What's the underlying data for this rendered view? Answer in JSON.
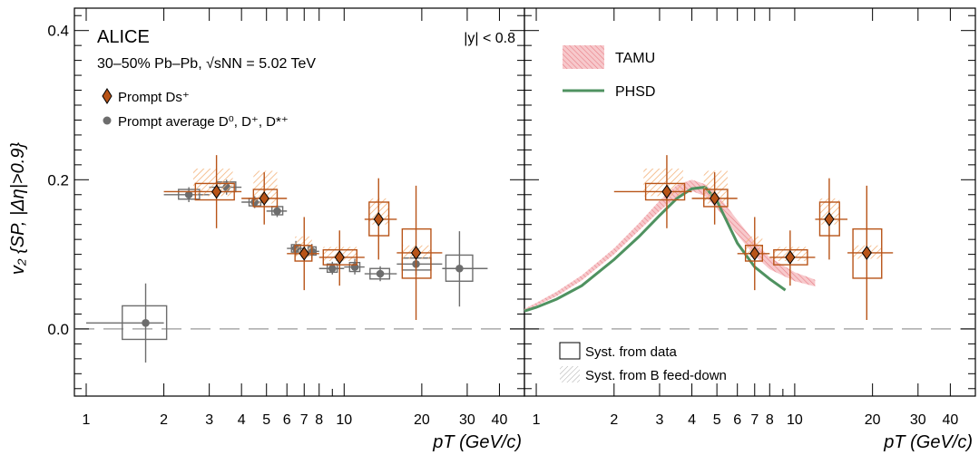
{
  "chart_data": {
    "type": "scatter",
    "ylabel": "v₂ {SP, |Δη|>0.9}",
    "xlabel": "pT (GeV/c)",
    "xscale": "log",
    "xlim": [
      0.9,
      50
    ],
    "ylim": [
      -0.09,
      0.43
    ],
    "yticks": [
      "0.0",
      "0.2",
      "0.4"
    ],
    "xticks": [
      "1",
      "2",
      "3",
      "4",
      "5",
      "6",
      "7",
      "8",
      "10",
      "20",
      "30",
      "40"
    ],
    "grid": false,
    "panels": [
      {
        "id": "left",
        "texts": {
          "experiment": "ALICE",
          "system": "30–50% Pb–Pb, √sNN = 5.02 TeV",
          "rapidity": "|y| < 0.8"
        },
        "legend": [
          {
            "label": "Prompt Ds⁺",
            "marker": "diamond",
            "color": "#b85418"
          },
          {
            "label": "Prompt average D⁰, D⁺, D*⁺",
            "marker": "circle",
            "color": "#6d6d6d"
          }
        ],
        "series": [
          {
            "name": "Prompt Ds⁺",
            "color": "#b85418",
            "points": [
              {
                "x": 3.2,
                "y": 0.184,
                "xlo": 2.0,
                "xhi": 4.0,
                "ylo": 0.135,
                "yhi": 0.233,
                "sys": [
                  2.65,
                  3.75,
                  0.173,
                  0.195
                ],
                "fd": [
                  2.6,
                  3.7,
                  0.178,
                  0.215
                ]
              },
              {
                "x": 4.9,
                "y": 0.175,
                "xlo": 4.0,
                "xhi": 6.0,
                "ylo": 0.14,
                "yhi": 0.21,
                "sys": [
                  4.45,
                  5.5,
                  0.164,
                  0.187
                ],
                "fd": [
                  4.45,
                  5.5,
                  0.168,
                  0.212
                ]
              },
              {
                "x": 7.0,
                "y": 0.101,
                "xlo": 6.0,
                "xhi": 8.0,
                "ylo": 0.052,
                "yhi": 0.15,
                "sys": [
                  6.45,
                  7.5,
                  0.091,
                  0.112
                ],
                "fd": [
                  6.45,
                  7.5,
                  0.096,
                  0.124
                ]
              },
              {
                "x": 9.6,
                "y": 0.096,
                "xlo": 8.0,
                "xhi": 12.0,
                "ylo": 0.058,
                "yhi": 0.132,
                "sys": [
                  8.3,
                  11.2,
                  0.086,
                  0.106
                ],
                "fd": [
                  8.3,
                  11.2,
                  0.091,
                  0.11
                ]
              },
              {
                "x": 13.6,
                "y": 0.147,
                "xlo": 12.0,
                "xhi": 16.0,
                "ylo": 0.093,
                "yhi": 0.202,
                "sys": [
                  12.5,
                  14.9,
                  0.125,
                  0.17
                ],
                "fd": [
                  12.5,
                  14.9,
                  0.14,
                  0.175
                ]
              },
              {
                "x": 19.0,
                "y": 0.102,
                "xlo": 16.0,
                "xhi": 24.0,
                "ylo": 0.012,
                "yhi": 0.192,
                "sys": [
                  16.8,
                  21.7,
                  0.068,
                  0.134
                ],
                "fd": [
                  16.8,
                  21.7,
                  0.094,
                  0.112
                ]
              }
            ]
          },
          {
            "name": "Prompt average D⁰, D⁺, D*⁺",
            "color": "#6d6d6d",
            "points": [
              {
                "x": 1.7,
                "y": 0.008,
                "xlo": 1.0,
                "xhi": 2.0,
                "ylo": -0.045,
                "yhi": 0.061,
                "sys": [
                  1.38,
                  2.05,
                  -0.014,
                  0.031
                ]
              },
              {
                "x": 2.5,
                "y": 0.18,
                "xlo": 2.0,
                "xhi": 3.0,
                "ylo": 0.17,
                "yhi": 0.19,
                "sys": [
                  2.28,
                  2.75,
                  0.174,
                  0.187
                ]
              },
              {
                "x": 3.5,
                "y": 0.19,
                "xlo": 3.0,
                "xhi": 4.0,
                "ylo": 0.18,
                "yhi": 0.2,
                "sys": [
                  3.22,
                  3.8,
                  0.184,
                  0.197
                ]
              },
              {
                "x": 4.5,
                "y": 0.17,
                "xlo": 4.0,
                "xhi": 5.0,
                "ylo": 0.162,
                "yhi": 0.178,
                "sys": [
                  4.28,
                  4.75,
                  0.165,
                  0.175
                ]
              },
              {
                "x": 5.5,
                "y": 0.158,
                "xlo": 5.0,
                "xhi": 6.0,
                "ylo": 0.15,
                "yhi": 0.166,
                "sys": [
                  5.25,
                  5.78,
                  0.153,
                  0.164
                ]
              },
              {
                "x": 6.5,
                "y": 0.108,
                "xlo": 6.0,
                "xhi": 7.0,
                "ylo": 0.099,
                "yhi": 0.118,
                "sys": [
                  6.25,
                  6.78,
                  0.103,
                  0.113
                ]
              },
              {
                "x": 7.5,
                "y": 0.104,
                "xlo": 7.0,
                "xhi": 8.0,
                "ylo": 0.095,
                "yhi": 0.114,
                "sys": [
                  7.25,
                  7.78,
                  0.099,
                  0.11
                ]
              },
              {
                "x": 9.0,
                "y": 0.081,
                "xlo": 8.0,
                "xhi": 10.0,
                "ylo": 0.073,
                "yhi": 0.09,
                "sys": [
                  8.6,
                  9.4,
                  0.076,
                  0.087
                ]
              },
              {
                "x": 11.0,
                "y": 0.083,
                "xlo": 10.0,
                "xhi": 12.0,
                "ylo": 0.073,
                "yhi": 0.094,
                "sys": [
                  10.5,
                  11.5,
                  0.077,
                  0.089
                ]
              },
              {
                "x": 13.8,
                "y": 0.074,
                "xlo": 12.0,
                "xhi": 16.0,
                "ylo": 0.064,
                "yhi": 0.084,
                "sys": [
                  12.6,
                  15.0,
                  0.067,
                  0.081
                ]
              },
              {
                "x": 19.0,
                "y": 0.087,
                "xlo": 16.0,
                "xhi": 24.0,
                "ylo": 0.072,
                "yhi": 0.102,
                "sys": [
                  16.8,
                  21.7,
                  0.079,
                  0.095
                ]
              },
              {
                "x": 28.0,
                "y": 0.081,
                "xlo": 24.0,
                "xhi": 36.0,
                "ylo": 0.03,
                "yhi": 0.131,
                "sys": [
                  24.8,
                  31.5,
                  0.064,
                  0.099
                ]
              }
            ]
          }
        ]
      },
      {
        "id": "right",
        "legend": [
          {
            "label": "TAMU",
            "kind": "band",
            "color": "#e87e86"
          },
          {
            "label": "PHSD",
            "kind": "line",
            "color": "#4f9260"
          }
        ],
        "syst_legend": [
          {
            "label": "Syst. from data",
            "kind": "open-box"
          },
          {
            "label": "Syst. from B feed-down",
            "kind": "hatched-box"
          }
        ],
        "series": [
          {
            "name": "Prompt Ds⁺",
            "color": "#b85418",
            "points": [
              {
                "x": 3.2,
                "y": 0.184,
                "xlo": 2.0,
                "xhi": 4.0,
                "ylo": 0.135,
                "yhi": 0.233,
                "sys": [
                  2.65,
                  3.75,
                  0.173,
                  0.195
                ],
                "fd": [
                  2.6,
                  3.7,
                  0.178,
                  0.215
                ]
              },
              {
                "x": 4.9,
                "y": 0.175,
                "xlo": 4.0,
                "xhi": 6.0,
                "ylo": 0.14,
                "yhi": 0.21,
                "sys": [
                  4.45,
                  5.5,
                  0.164,
                  0.187
                ],
                "fd": [
                  4.45,
                  5.5,
                  0.168,
                  0.212
                ]
              },
              {
                "x": 7.0,
                "y": 0.101,
                "xlo": 6.0,
                "xhi": 8.0,
                "ylo": 0.052,
                "yhi": 0.15,
                "sys": [
                  6.45,
                  7.5,
                  0.091,
                  0.112
                ],
                "fd": [
                  6.45,
                  7.5,
                  0.096,
                  0.124
                ]
              },
              {
                "x": 9.6,
                "y": 0.096,
                "xlo": 8.0,
                "xhi": 12.0,
                "ylo": 0.058,
                "yhi": 0.132,
                "sys": [
                  8.3,
                  11.2,
                  0.086,
                  0.106
                ],
                "fd": [
                  8.3,
                  11.2,
                  0.091,
                  0.11
                ]
              },
              {
                "x": 13.6,
                "y": 0.147,
                "xlo": 12.0,
                "xhi": 16.0,
                "ylo": 0.093,
                "yhi": 0.202,
                "sys": [
                  12.5,
                  14.9,
                  0.125,
                  0.17
                ],
                "fd": [
                  12.5,
                  14.9,
                  0.14,
                  0.175
                ]
              },
              {
                "x": 19.0,
                "y": 0.102,
                "xlo": 16.0,
                "xhi": 24.0,
                "ylo": 0.012,
                "yhi": 0.192,
                "sys": [
                  16.8,
                  21.7,
                  0.068,
                  0.134
                ],
                "fd": [
                  16.8,
                  21.7,
                  0.094,
                  0.112
                ]
              }
            ]
          }
        ],
        "models": {
          "TAMU": {
            "color": "#e87e86",
            "x": [
              0.9,
              1.0,
              1.2,
              1.5,
              2.0,
              2.5,
              3.0,
              3.5,
              4.0,
              4.5,
              5.0,
              6.0,
              7.0,
              8.0,
              10.0,
              12.0
            ],
            "low": [
              0.024,
              0.031,
              0.044,
              0.065,
              0.1,
              0.132,
              0.158,
              0.177,
              0.185,
              0.178,
              0.162,
              0.126,
              0.098,
              0.08,
              0.064,
              0.057
            ],
            "high": [
              0.027,
              0.035,
              0.05,
              0.072,
              0.108,
              0.142,
              0.172,
              0.193,
              0.2,
              0.194,
              0.181,
              0.146,
              0.117,
              0.096,
              0.076,
              0.066
            ]
          },
          "PHSD": {
            "color": "#4f9260",
            "x": [
              0.9,
              1.0,
              1.2,
              1.5,
              2.0,
              2.5,
              3.0,
              3.5,
              4.0,
              4.5,
              5.0,
              6.0,
              7.0,
              8.0,
              9.2
            ],
            "y": [
              0.024,
              0.029,
              0.04,
              0.058,
              0.093,
              0.124,
              0.152,
              0.175,
              0.188,
              0.19,
              0.172,
              0.115,
              0.083,
              0.067,
              0.052
            ]
          }
        }
      }
    ],
    "baseline": {
      "y": 0.0,
      "style": "dashed",
      "color": "#aaaaaa"
    }
  }
}
